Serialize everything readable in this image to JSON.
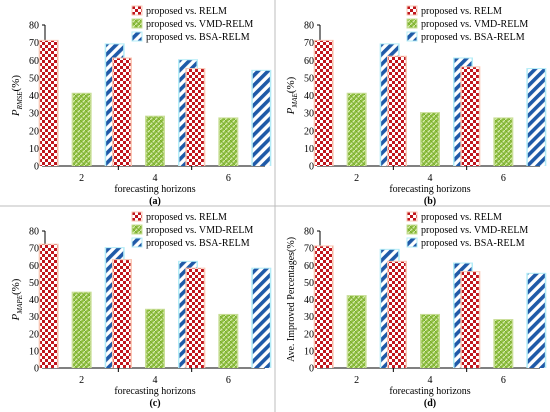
{
  "chart_data": [
    {
      "type": "bar",
      "panel_label": "(a)",
      "ylabel_main": "P",
      "ylabel_sub": "RMSE",
      "ylabel_unit": "(%)",
      "xlabel": "forecasting horizons",
      "categories": [
        "2",
        "4",
        "6"
      ],
      "ylim": [
        0,
        80
      ],
      "yticks": [
        "0",
        "10",
        "20",
        "30",
        "40",
        "50",
        "60",
        "70",
        "80"
      ],
      "legend_position": "top-right",
      "series": [
        {
          "name": "proposed vs. RELM",
          "values": [
            71,
            61,
            55
          ]
        },
        {
          "name": "proposed vs. VMD-RELM",
          "values": [
            41,
            28,
            27
          ]
        },
        {
          "name": "proposed vs. BSA-RELM",
          "values": [
            69,
            60,
            54
          ]
        }
      ]
    },
    {
      "type": "bar",
      "panel_label": "(b)",
      "ylabel_main": "P",
      "ylabel_sub": "MAE",
      "ylabel_unit": "(%)",
      "xlabel": "forecasting horizons",
      "categories": [
        "2",
        "4",
        "6"
      ],
      "ylim": [
        0,
        80
      ],
      "yticks": [
        "0",
        "10",
        "20",
        "30",
        "40",
        "50",
        "60",
        "70",
        "80"
      ],
      "legend_position": "top-right",
      "series": [
        {
          "name": "proposed vs. RELM",
          "values": [
            71,
            62,
            56
          ]
        },
        {
          "name": "proposed vs. VMD-RELM",
          "values": [
            41,
            30,
            27
          ]
        },
        {
          "name": "proposed vs. BSA-RELM",
          "values": [
            69,
            61,
            55
          ]
        }
      ]
    },
    {
      "type": "bar",
      "panel_label": "(c)",
      "ylabel_main": "P",
      "ylabel_sub": "MAPE",
      "ylabel_unit": "(%)",
      "xlabel": "forecasting horizons",
      "categories": [
        "2",
        "4",
        "6"
      ],
      "ylim": [
        0,
        80
      ],
      "yticks": [
        "0",
        "10",
        "20",
        "30",
        "40",
        "50",
        "60",
        "70",
        "80"
      ],
      "legend_position": "top-right",
      "series": [
        {
          "name": "proposed vs. RELM",
          "values": [
            72,
            63,
            58
          ]
        },
        {
          "name": "proposed vs. VMD-RELM",
          "values": [
            44,
            34,
            31
          ]
        },
        {
          "name": "proposed vs. BSA-RELM",
          "values": [
            70,
            62,
            58
          ]
        }
      ]
    },
    {
      "type": "bar",
      "panel_label": "(d)",
      "ylabel_main": "Ave. Improved Percentages(%)",
      "ylabel_sub": "",
      "ylabel_unit": "",
      "xlabel": "forecasting horizons",
      "categories": [
        "2",
        "4",
        "6"
      ],
      "ylim": [
        0,
        80
      ],
      "yticks": [
        "0",
        "10",
        "20",
        "30",
        "40",
        "50",
        "60",
        "70",
        "80"
      ],
      "legend_position": "top-right",
      "series": [
        {
          "name": "proposed vs. RELM",
          "values": [
            71,
            62,
            56
          ]
        },
        {
          "name": "proposed vs. VMD-RELM",
          "values": [
            42,
            31,
            28
          ]
        },
        {
          "name": "proposed vs. BSA-RELM",
          "values": [
            69,
            61,
            55
          ]
        }
      ]
    }
  ],
  "colors": {
    "relm_red": "#c0161d",
    "relm_bg": "#ffffff",
    "relm_glow": "#f9c7b5",
    "vmd_green": "#8fc040",
    "vmd_glow": "#c9df98",
    "bsa_blue": "#1f5aa8",
    "bsa_glow": "#b3ecf7"
  }
}
